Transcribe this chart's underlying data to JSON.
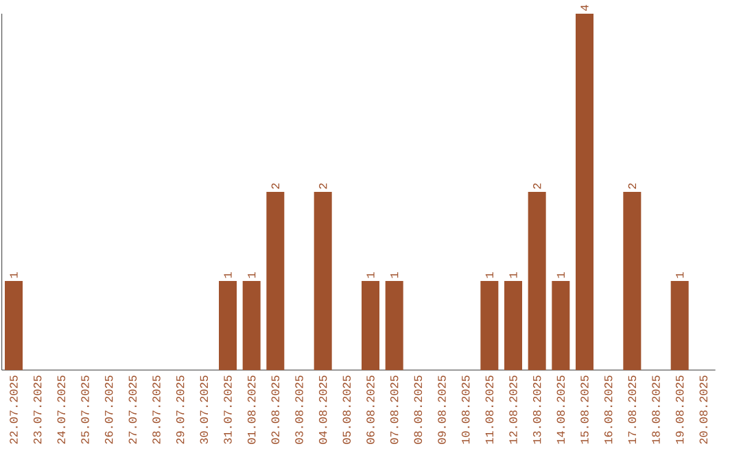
{
  "chart_data": {
    "type": "bar",
    "color": "#a0522d",
    "tick_labels": "x",
    "categories": [
      "22.07.2025",
      "23.07.2025",
      "24.07.2025",
      "25.07.2025",
      "26.07.2025",
      "27.07.2025",
      "28.07.2025",
      "29.07.2025",
      "30.07.2025",
      "31.07.2025",
      "01.08.2025",
      "02.08.2025",
      "03.08.2025",
      "04.08.2025",
      "05.08.2025",
      "06.08.2025",
      "07.08.2025",
      "08.08.2025",
      "09.08.2025",
      "10.08.2025",
      "11.08.2025",
      "12.08.2025",
      "13.08.2025",
      "14.08.2025",
      "15.08.2025",
      "16.08.2025",
      "17.08.2025",
      "18.08.2025",
      "19.08.2025",
      "20.08.2025"
    ],
    "values": [
      1,
      0,
      0,
      0,
      0,
      0,
      0,
      0,
      0,
      1,
      1,
      2,
      0,
      2,
      0,
      1,
      1,
      0,
      0,
      0,
      1,
      1,
      2,
      1,
      4,
      0,
      2,
      0,
      1,
      0
    ],
    "value_labels": [
      "1",
      null,
      null,
      null,
      null,
      null,
      null,
      null,
      null,
      "1",
      "1",
      "2",
      null,
      "2",
      null,
      "1",
      "1",
      null,
      null,
      null,
      "1",
      "1",
      "2",
      "1",
      "4",
      null,
      "2",
      null,
      "1",
      null
    ]
  }
}
